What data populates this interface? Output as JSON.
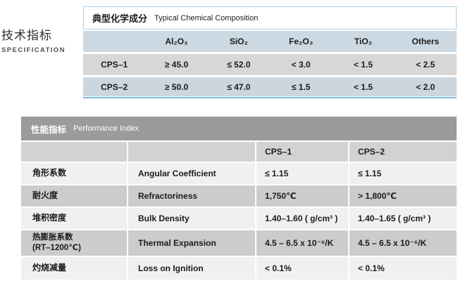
{
  "section": {
    "title_zh": "技术指标",
    "title_en": "SPECIFICATION"
  },
  "chemical_table": {
    "title_zh": "典型化学成分",
    "title_en": "Typical Chemical Composition",
    "columns": [
      "Al₂O₃",
      "SiO₂",
      "Fe₂O₃",
      "TiO₂",
      "Others"
    ],
    "rows": [
      {
        "label": "CPS–1",
        "values": [
          "≥ 45.0",
          "≤ 52.0",
          "< 3.0",
          "< 1.5",
          "< 2.5"
        ]
      },
      {
        "label": "CPS–2",
        "values": [
          "≥ 50.0",
          "≤ 47.0",
          "≤ 1.5",
          "< 1.5",
          "< 2.0"
        ]
      }
    ]
  },
  "performance_table": {
    "title_zh": "性能指标",
    "title_en": "Performance Index",
    "col_headers": [
      "CPS–1",
      "CPS–2"
    ],
    "rows": [
      {
        "zh": "角形系数",
        "en": "Angular Coefficient",
        "cps1": "≤ 1.15",
        "cps2": "≤ 1.15"
      },
      {
        "zh": "耐火度",
        "en": "Refractoriness",
        "cps1": "1,750℃",
        "cps2": "> 1,800℃"
      },
      {
        "zh": "堆积密度",
        "en": "Bulk Density",
        "cps1": "1.40–1.60 ( g/cm³ )",
        "cps2": "1.40–1.65 ( g/cm³ )"
      },
      {
        "zh": "热膨胀系数\n(RT–1200℃)",
        "en": "Thermal Expansion",
        "cps1": "4.5 – 6.5  x 10⁻⁶/K",
        "cps2": "4.5 – 6.5  x 10⁻⁶/K"
      },
      {
        "zh": "灼烧减量",
        "en": "Loss on Ignition",
        "cps1": "< 0.1%",
        "cps2": "< 0.1%"
      }
    ]
  },
  "colors": {
    "chem_header_border": "#a9d2e5",
    "chem_column_band": "#ccd9e2",
    "chem_row_gray": "#d8d7d5",
    "chem_row_blue": "#cbd6df",
    "chem_bottom_line": "#79bbd9",
    "perf_title_bar": "#9b9b99",
    "perf_subheader": "#d2d2d0",
    "perf_row_light": "#f1f0ee",
    "perf_row_mid": "#cccccb"
  }
}
